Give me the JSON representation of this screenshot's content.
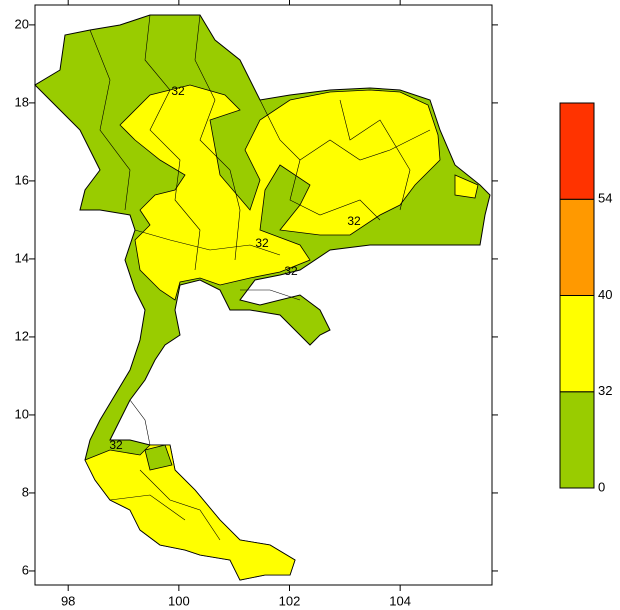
{
  "chart_data": {
    "type": "map",
    "xlim": [
      97.4,
      105.66
    ],
    "ylim": [
      5.64,
      20.51
    ],
    "xticks": [
      98,
      100,
      102,
      104
    ],
    "yticks": [
      6,
      8,
      10,
      12,
      14,
      16,
      18,
      20
    ],
    "colorbar": {
      "levels": [
        0,
        32,
        40,
        54
      ],
      "colors": [
        "#99cc00",
        "#ffff00",
        "#ff9900",
        "#ff3300"
      ]
    },
    "contour_labels": [
      "32",
      "32",
      "32",
      "32",
      "32"
    ]
  }
}
